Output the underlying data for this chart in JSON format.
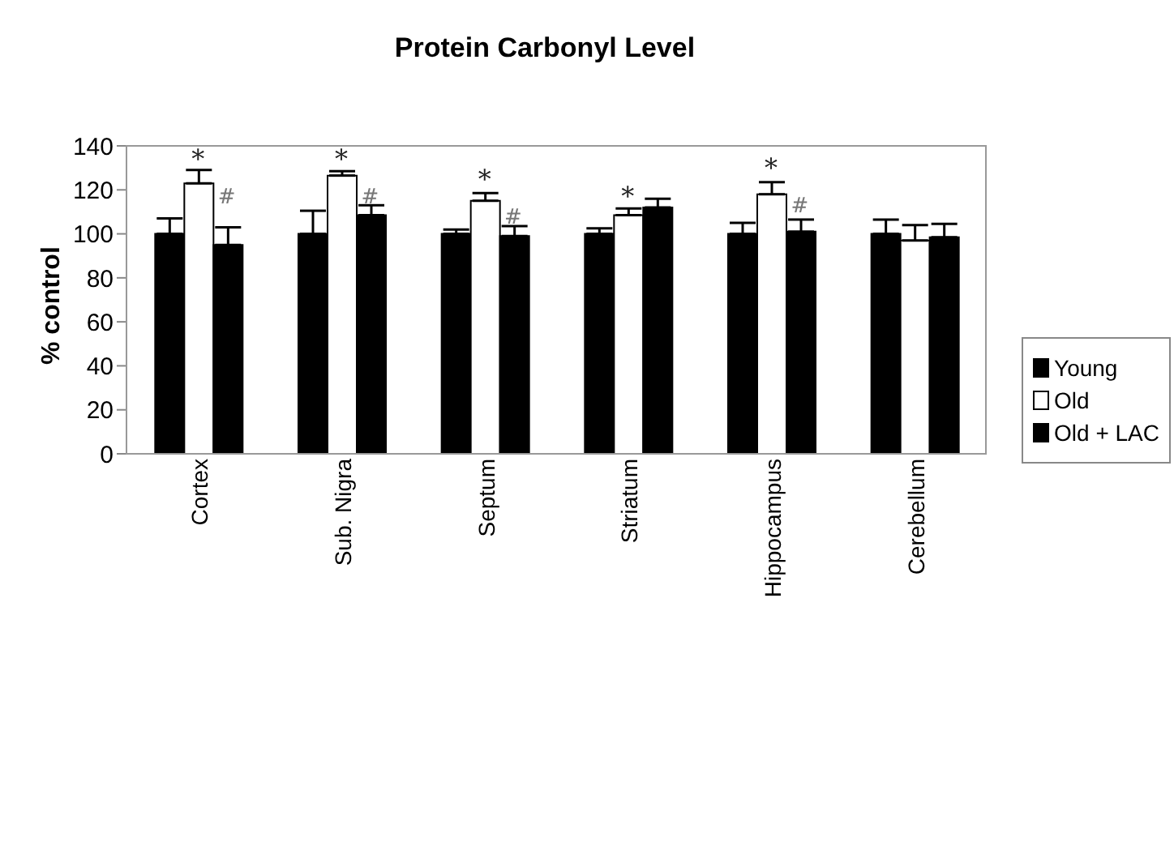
{
  "chart_data": {
    "type": "bar",
    "title": "Protein Carbonyl Level",
    "ylabel": "% control",
    "categories": [
      "Cortex",
      "Sub. Nigra",
      "Septum",
      "Striatum",
      "Hippocampus",
      "Cerebellum"
    ],
    "series": [
      {
        "name": "Young",
        "color": "#000000",
        "values": [
          100,
          100,
          100,
          100,
          100,
          100
        ],
        "errors": [
          [
            100,
            107
          ],
          [
            100,
            110.5
          ],
          [
            100,
            102
          ],
          [
            100,
            102.5
          ],
          [
            100,
            105
          ],
          [
            100,
            106.5
          ]
        ]
      },
      {
        "name": "Old",
        "color": "#ffffff",
        "values": [
          123,
          126.5,
          115,
          108.5,
          118,
          97
        ],
        "errors": [
          [
            123,
            129
          ],
          [
            126.5,
            128.5
          ],
          [
            115,
            118.5
          ],
          [
            108.5,
            111.5
          ],
          [
            118,
            123.5
          ],
          [
            97,
            104
          ]
        ]
      },
      {
        "name": "Old + LAC",
        "color": "#000000",
        "values": [
          95,
          108.5,
          99,
          112,
          101,
          98.5
        ],
        "errors": [
          [
            95,
            103
          ],
          [
            108.5,
            113
          ],
          [
            99,
            103.5
          ],
          [
            112,
            116
          ],
          [
            101,
            106.5
          ],
          [
            98.5,
            104.5
          ]
        ]
      }
    ],
    "annotations": [
      {
        "text": "*",
        "x": "Cortex",
        "y": 130
      },
      "#",
      {
        "text": "*",
        "x": "Sub. Nigra",
        "y": 130
      },
      "#",
      {
        "text": "*",
        "x": "Septum",
        "y": 121
      },
      "#",
      {
        "text": "*",
        "x": "Striatum",
        "y": 113
      },
      {
        "text": "*",
        "x": "Hippocampus",
        "y": 126
      },
      "#"
    ],
    "ylim": [
      0,
      140
    ],
    "yticks": [
      0,
      20,
      40,
      60,
      80,
      100,
      120,
      140
    ],
    "grid": false,
    "legend": "right"
  }
}
